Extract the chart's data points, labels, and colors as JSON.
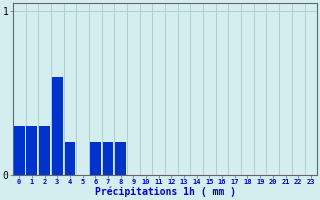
{
  "categories": [
    0,
    1,
    2,
    3,
    4,
    5,
    6,
    7,
    8,
    9,
    10,
    11,
    12,
    13,
    14,
    15,
    16,
    17,
    18,
    19,
    20,
    21,
    22,
    23
  ],
  "values": [
    0.3,
    0.3,
    0.3,
    0.6,
    0.2,
    0.0,
    0.2,
    0.2,
    0.2,
    0.0,
    0.0,
    0.0,
    0.0,
    0.0,
    0.0,
    0.0,
    0.0,
    0.0,
    0.0,
    0.0,
    0.0,
    0.0,
    0.0,
    0.0
  ],
  "bar_color": "#0033cc",
  "background_color": "#d4eef0",
  "grid_color": "#b0cccc",
  "axis_color": "#666666",
  "text_color": "#0000cc",
  "xlabel": "Précipitations 1h ( mm )",
  "ylim": [
    0,
    1.05
  ],
  "yticks": [
    0,
    1
  ],
  "bar_width": 0.85
}
